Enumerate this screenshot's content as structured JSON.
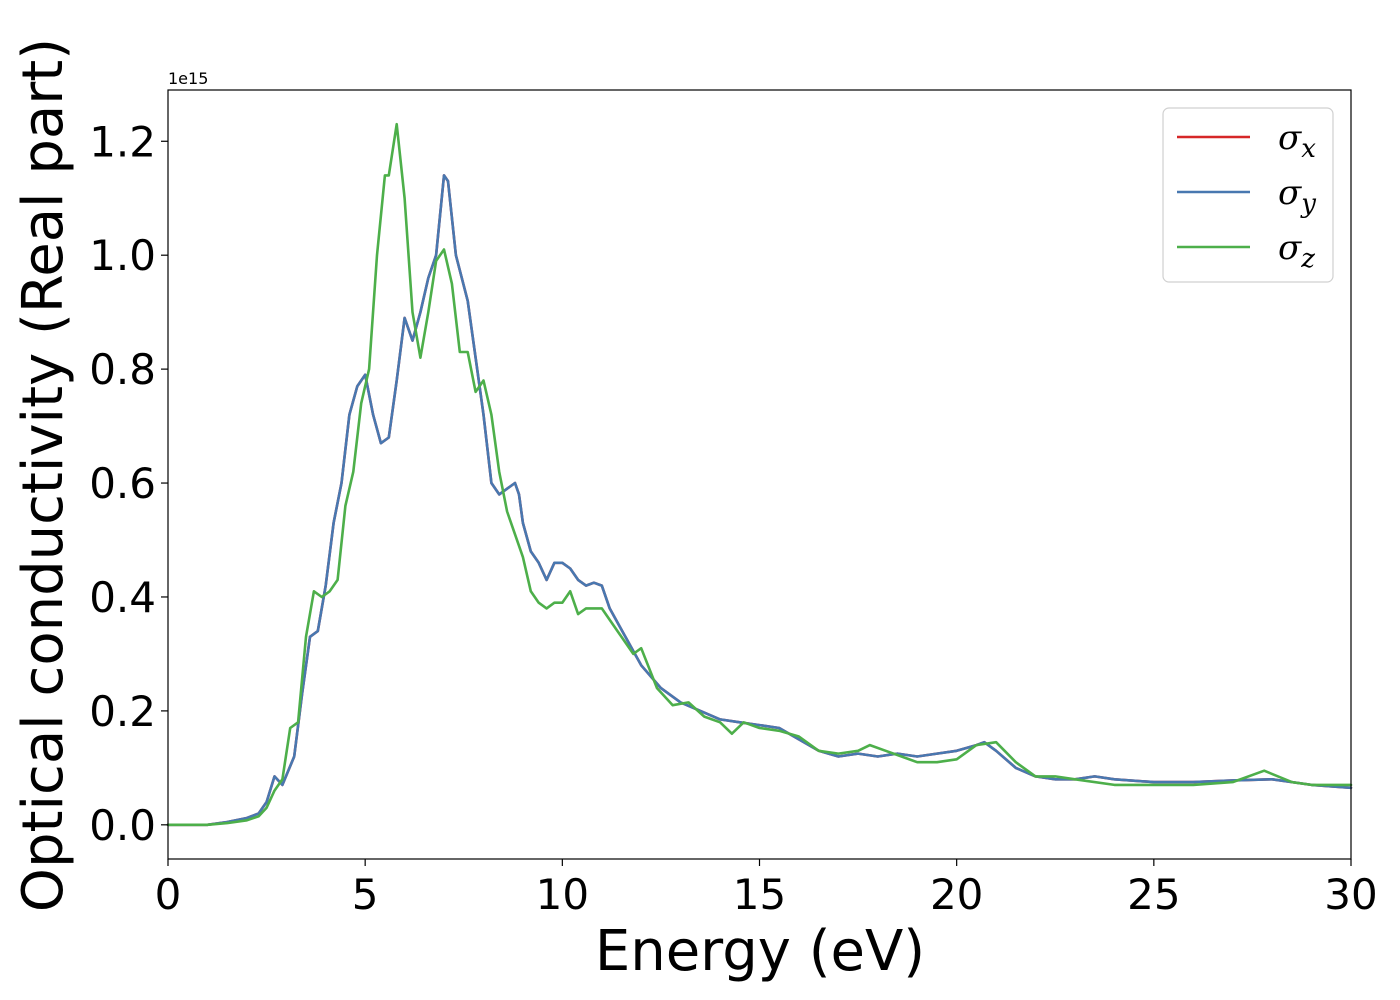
{
  "chart_data": {
    "type": "line",
    "title": "",
    "xlabel": "Energy (eV)",
    "ylabel": "Optical conductivity (Real part)",
    "y_offset_text": "1e15",
    "xlim": [
      0,
      30
    ],
    "ylim": [
      -0.06,
      1.29
    ],
    "x_ticks": [
      0,
      5,
      10,
      15,
      20,
      25,
      30
    ],
    "y_ticks": [
      0.0,
      0.2,
      0.4,
      0.6,
      0.8,
      1.0,
      1.2
    ],
    "y_tick_labels": [
      "0.0",
      "0.2",
      "0.4",
      "0.6",
      "0.8",
      "1.0",
      "1.2"
    ],
    "grid": false,
    "legend_position": "top-right",
    "series": [
      {
        "name": "σx",
        "legend_base": "σ",
        "legend_sub": "x",
        "color": "#d62728",
        "x": [
          0,
          1,
          1.5,
          2,
          2.3,
          2.5,
          2.7,
          2.9,
          3.2,
          3.4,
          3.6,
          3.8,
          4.0,
          4.2,
          4.4,
          4.6,
          4.8,
          5.0,
          5.2,
          5.4,
          5.6,
          5.8,
          6.0,
          6.2,
          6.4,
          6.6,
          6.8,
          7.0,
          7.1,
          7.3,
          7.6,
          7.8,
          8.0,
          8.2,
          8.4,
          8.6,
          8.8,
          8.9,
          9.0,
          9.2,
          9.4,
          9.6,
          9.8,
          10.0,
          10.2,
          10.4,
          10.6,
          10.8,
          11.0,
          11.2,
          11.6,
          12.0,
          12.5,
          13.0,
          13.5,
          14.0,
          14.5,
          15.0,
          15.5,
          16.0,
          16.5,
          17.0,
          17.5,
          18.0,
          18.5,
          19.0,
          19.5,
          20.0,
          20.5,
          20.7,
          21.0,
          21.5,
          22.0,
          22.5,
          23.0,
          23.5,
          24.0,
          25.0,
          26.0,
          27.0,
          28.0,
          29.0,
          30.0
        ],
        "values": [
          0,
          0,
          0.005,
          0.012,
          0.02,
          0.04,
          0.085,
          0.07,
          0.12,
          0.23,
          0.33,
          0.34,
          0.42,
          0.53,
          0.6,
          0.72,
          0.77,
          0.79,
          0.72,
          0.67,
          0.68,
          0.78,
          0.89,
          0.85,
          0.9,
          0.96,
          1.0,
          1.14,
          1.13,
          1.0,
          0.92,
          0.82,
          0.72,
          0.6,
          0.58,
          0.59,
          0.6,
          0.58,
          0.53,
          0.48,
          0.46,
          0.43,
          0.46,
          0.46,
          0.45,
          0.43,
          0.42,
          0.425,
          0.42,
          0.38,
          0.33,
          0.28,
          0.24,
          0.215,
          0.2,
          0.185,
          0.18,
          0.175,
          0.17,
          0.15,
          0.13,
          0.12,
          0.125,
          0.12,
          0.125,
          0.12,
          0.125,
          0.13,
          0.14,
          0.145,
          0.13,
          0.1,
          0.085,
          0.08,
          0.08,
          0.085,
          0.08,
          0.075,
          0.075,
          0.078,
          0.08,
          0.07,
          0.065
        ]
      },
      {
        "name": "σy",
        "legend_base": "σ",
        "legend_sub": "y",
        "color": "#4878b0",
        "x": [
          0,
          1,
          1.5,
          2,
          2.3,
          2.5,
          2.7,
          2.9,
          3.2,
          3.4,
          3.6,
          3.8,
          4.0,
          4.2,
          4.4,
          4.6,
          4.8,
          5.0,
          5.2,
          5.4,
          5.6,
          5.8,
          6.0,
          6.2,
          6.4,
          6.6,
          6.8,
          7.0,
          7.1,
          7.3,
          7.6,
          7.8,
          8.0,
          8.2,
          8.4,
          8.6,
          8.8,
          8.9,
          9.0,
          9.2,
          9.4,
          9.6,
          9.8,
          10.0,
          10.2,
          10.4,
          10.6,
          10.8,
          11.0,
          11.2,
          11.6,
          12.0,
          12.5,
          13.0,
          13.5,
          14.0,
          14.5,
          15.0,
          15.5,
          16.0,
          16.5,
          17.0,
          17.5,
          18.0,
          18.5,
          19.0,
          19.5,
          20.0,
          20.5,
          20.7,
          21.0,
          21.5,
          22.0,
          22.5,
          23.0,
          23.5,
          24.0,
          25.0,
          26.0,
          27.0,
          28.0,
          29.0,
          30.0
        ],
        "values": [
          0,
          0,
          0.005,
          0.012,
          0.02,
          0.04,
          0.085,
          0.07,
          0.12,
          0.23,
          0.33,
          0.34,
          0.42,
          0.53,
          0.6,
          0.72,
          0.77,
          0.79,
          0.72,
          0.67,
          0.68,
          0.78,
          0.89,
          0.85,
          0.9,
          0.96,
          1.0,
          1.14,
          1.13,
          1.0,
          0.92,
          0.82,
          0.72,
          0.6,
          0.58,
          0.59,
          0.6,
          0.58,
          0.53,
          0.48,
          0.46,
          0.43,
          0.46,
          0.46,
          0.45,
          0.43,
          0.42,
          0.425,
          0.42,
          0.38,
          0.33,
          0.28,
          0.24,
          0.215,
          0.2,
          0.185,
          0.18,
          0.175,
          0.17,
          0.15,
          0.13,
          0.12,
          0.125,
          0.12,
          0.125,
          0.12,
          0.125,
          0.13,
          0.14,
          0.145,
          0.13,
          0.1,
          0.085,
          0.08,
          0.08,
          0.085,
          0.08,
          0.075,
          0.075,
          0.078,
          0.08,
          0.07,
          0.065
        ]
      },
      {
        "name": "σz",
        "legend_base": "σ",
        "legend_sub": "z",
        "color": "#4daf4a",
        "x": [
          0,
          1,
          1.5,
          2,
          2.3,
          2.5,
          2.7,
          2.9,
          3.1,
          3.3,
          3.5,
          3.7,
          3.9,
          4.1,
          4.3,
          4.5,
          4.7,
          4.9,
          5.1,
          5.3,
          5.5,
          5.6,
          5.8,
          6.0,
          6.2,
          6.4,
          6.6,
          6.8,
          7.0,
          7.2,
          7.4,
          7.6,
          7.8,
          8.0,
          8.2,
          8.4,
          8.6,
          8.8,
          9.0,
          9.2,
          9.4,
          9.6,
          9.8,
          10.0,
          10.2,
          10.4,
          10.6,
          10.8,
          11.0,
          11.4,
          11.8,
          12.0,
          12.4,
          12.8,
          13.2,
          13.6,
          14.0,
          14.3,
          14.6,
          15.0,
          15.5,
          16.0,
          16.5,
          17.0,
          17.5,
          17.8,
          18.2,
          18.6,
          19.0,
          19.5,
          20.0,
          20.5,
          21.0,
          21.5,
          22.0,
          22.5,
          23.0,
          24.0,
          25.0,
          26.0,
          27.0,
          27.8,
          28.5,
          29.0,
          30.0
        ],
        "values": [
          0,
          0,
          0.003,
          0.008,
          0.015,
          0.03,
          0.06,
          0.08,
          0.17,
          0.18,
          0.33,
          0.41,
          0.4,
          0.41,
          0.43,
          0.56,
          0.62,
          0.74,
          0.8,
          1.0,
          1.14,
          1.14,
          1.23,
          1.1,
          0.9,
          0.82,
          0.9,
          0.99,
          1.01,
          0.95,
          0.83,
          0.83,
          0.76,
          0.78,
          0.72,
          0.62,
          0.55,
          0.51,
          0.47,
          0.41,
          0.39,
          0.38,
          0.39,
          0.39,
          0.41,
          0.37,
          0.38,
          0.38,
          0.38,
          0.34,
          0.3,
          0.31,
          0.24,
          0.21,
          0.215,
          0.19,
          0.18,
          0.16,
          0.18,
          0.17,
          0.165,
          0.155,
          0.13,
          0.125,
          0.13,
          0.14,
          0.13,
          0.12,
          0.11,
          0.11,
          0.115,
          0.14,
          0.145,
          0.11,
          0.085,
          0.085,
          0.08,
          0.07,
          0.07,
          0.07,
          0.075,
          0.095,
          0.075,
          0.07,
          0.07
        ]
      }
    ]
  }
}
